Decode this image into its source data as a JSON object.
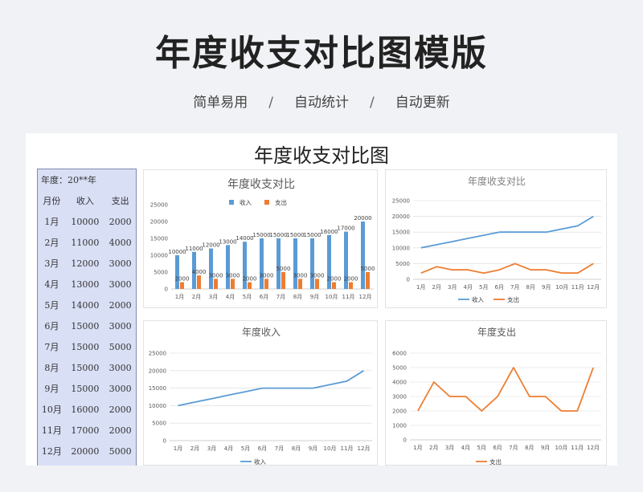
{
  "banner": {
    "title": "年度收支对比图模版",
    "tags": [
      "简单易用",
      "自动统计",
      "自动更新"
    ],
    "separator": "/"
  },
  "sheet": {
    "title": "年度收支对比图",
    "year_label": "年度：20**年",
    "table_headers": [
      "月份",
      "收入",
      "支出"
    ],
    "rows": [
      [
        "1月",
        "10000",
        "2000"
      ],
      [
        "2月",
        "11000",
        "4000"
      ],
      [
        "3月",
        "12000",
        "3000"
      ],
      [
        "4月",
        "13000",
        "3000"
      ],
      [
        "5月",
        "14000",
        "2000"
      ],
      [
        "6月",
        "15000",
        "3000"
      ],
      [
        "7月",
        "15000",
        "5000"
      ],
      [
        "8月",
        "15000",
        "3000"
      ],
      [
        "9月",
        "15000",
        "3000"
      ],
      [
        "10月",
        "16000",
        "2000"
      ],
      [
        "11月",
        "17000",
        "2000"
      ],
      [
        "12月",
        "20000",
        "5000"
      ]
    ]
  },
  "colors": {
    "income": "#5b9bd5",
    "expense": "#ed7d31",
    "line": "#5b9bd5",
    "grid": "#d9d9d9",
    "table_bg": "#d9dff5"
  },
  "chart_data": [
    {
      "type": "bar",
      "title": "年度收支对比",
      "categories": [
        "1月",
        "2月",
        "3月",
        "4月",
        "5月",
        "6月",
        "7月",
        "8月",
        "9月",
        "10月",
        "11月",
        "12月"
      ],
      "series": [
        {
          "name": "收入",
          "values": [
            10000,
            11000,
            12000,
            13000,
            14000,
            15000,
            15000,
            15000,
            15000,
            16000,
            17000,
            20000
          ]
        },
        {
          "name": "支出",
          "values": [
            2000,
            4000,
            3000,
            3000,
            2000,
            3000,
            5000,
            3000,
            3000,
            2000,
            2000,
            5000
          ]
        }
      ],
      "ylim": [
        0,
        25000
      ],
      "yticks": [
        "0",
        "5000",
        "10000",
        "15000",
        "20000",
        "25000"
      ],
      "legend": "top",
      "data_labels": true,
      "grid": false
    },
    {
      "type": "line",
      "title": "年度收支对比",
      "categories": [
        "1月",
        "2月",
        "3月",
        "4月",
        "5月",
        "6月",
        "7月",
        "8月",
        "9月",
        "10月",
        "11月",
        "12月"
      ],
      "series": [
        {
          "name": "收入",
          "values": [
            10000,
            11000,
            12000,
            13000,
            14000,
            15000,
            15000,
            15000,
            15000,
            16000,
            17000,
            20000
          ]
        },
        {
          "name": "支出",
          "values": [
            2000,
            4000,
            3000,
            3000,
            2000,
            3000,
            5000,
            3000,
            3000,
            2000,
            2000,
            5000
          ]
        }
      ],
      "ylim": [
        0,
        25000
      ],
      "yticks": [
        "0",
        "5000",
        "10000",
        "15000",
        "20000",
        "25000"
      ],
      "legend": "bottom",
      "grid": true
    },
    {
      "type": "line",
      "title": "年度收入",
      "categories": [
        "1月",
        "2月",
        "3月",
        "4月",
        "5月",
        "6月",
        "7月",
        "8月",
        "9月",
        "10月",
        "11月",
        "12月"
      ],
      "series": [
        {
          "name": "收入",
          "values": [
            10000,
            11000,
            12000,
            13000,
            14000,
            15000,
            15000,
            15000,
            15000,
            16000,
            17000,
            20000
          ]
        }
      ],
      "ylim": [
        0,
        25000
      ],
      "yticks": [
        "0",
        "5000",
        "10000",
        "15000",
        "20000",
        "25000"
      ],
      "legend": "bottom",
      "grid": true
    },
    {
      "type": "line",
      "title": "年度支出",
      "categories": [
        "1月",
        "2月",
        "3月",
        "4月",
        "5月",
        "6月",
        "7月",
        "8月",
        "9月",
        "10月",
        "11月",
        "12月"
      ],
      "series": [
        {
          "name": "支出",
          "values": [
            2000,
            4000,
            3000,
            3000,
            2000,
            3000,
            5000,
            3000,
            3000,
            2000,
            2000,
            5000
          ]
        }
      ],
      "ylim": [
        0,
        6000
      ],
      "yticks": [
        "0",
        "1000",
        "2000",
        "3000",
        "4000",
        "5000",
        "6000"
      ],
      "legend": "bottom",
      "grid": true
    }
  ]
}
